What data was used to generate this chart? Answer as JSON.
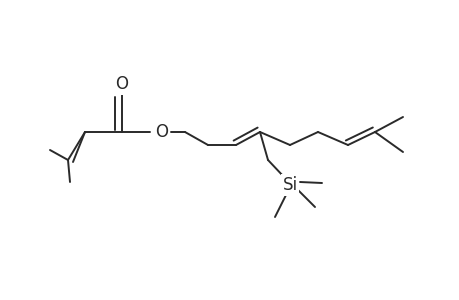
{
  "bg_color": "#ffffff",
  "line_color": "#2a2a2a",
  "line_width": 1.4,
  "si_label": "Si",
  "o_label": "O",
  "bond_O_label": "O"
}
